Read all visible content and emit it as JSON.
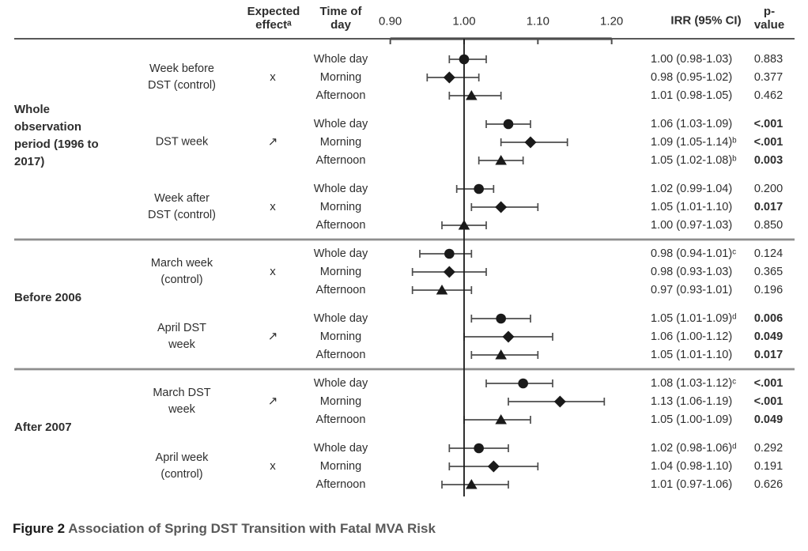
{
  "figure": {
    "columns": {
      "expected_effect": [
        "Expected",
        "effectᵃ"
      ],
      "time_of_day": [
        "Time of",
        "day"
      ],
      "irr": "IRR (95% CI)",
      "p_value": [
        "p-",
        "value"
      ]
    },
    "caption_prefix": "Figure 2",
    "caption_title": "Association of Spring DST Transition with Fatal MVA Risk"
  },
  "colors": {
    "marker": "#1a1a1a",
    "ci_line": "#4d4d4d",
    "reference_line": "#1a1a1a",
    "header_rule": "#595959",
    "separator": "#8e8e8e",
    "text": "#2e2e2e",
    "caption_title": "#595959"
  },
  "chart_data": {
    "type": "forest",
    "title": "Association of Spring DST Transition with Fatal MVA Risk",
    "xlabel": "IRR (95% CI)",
    "axis": {
      "ticks": [
        0.9,
        1.0,
        1.1,
        1.2
      ],
      "tick_labels": [
        "0.90",
        "1.00",
        "1.10",
        "1.20"
      ],
      "reference_line": 1.0
    },
    "marker_by_time": {
      "Whole day": "circle",
      "Morning": "diamond",
      "Afternoon": "triangle"
    },
    "groups": [
      {
        "label": [
          "Whole",
          "observation",
          "period (1996 to",
          "2017)"
        ],
        "subgroups": [
          {
            "label": [
              "Week before",
              "DST (control)"
            ],
            "expected_effect": "x",
            "rows": [
              {
                "time_of_day": "Whole day",
                "irr": 1.0,
                "ci_low": 0.98,
                "ci_high": 1.03,
                "irr_text": "1.00 (0.98-1.03)",
                "p_value": "0.883",
                "significant": false
              },
              {
                "time_of_day": "Morning",
                "irr": 0.98,
                "ci_low": 0.95,
                "ci_high": 1.02,
                "irr_text": "0.98 (0.95-1.02)",
                "p_value": "0.377",
                "significant": false
              },
              {
                "time_of_day": "Afternoon",
                "irr": 1.01,
                "ci_low": 0.98,
                "ci_high": 1.05,
                "irr_text": "1.01 (0.98-1.05)",
                "p_value": "0.462",
                "significant": false
              }
            ]
          },
          {
            "label": [
              "DST week"
            ],
            "expected_effect": "↗",
            "rows": [
              {
                "time_of_day": "Whole day",
                "irr": 1.06,
                "ci_low": 1.03,
                "ci_high": 1.09,
                "irr_text": "1.06 (1.03-1.09)",
                "p_value": "<.001",
                "significant": true
              },
              {
                "time_of_day": "Morning",
                "irr": 1.09,
                "ci_low": 1.05,
                "ci_high": 1.14,
                "irr_text": "1.09 (1.05-1.14)ᵇ",
                "p_value": "<.001",
                "significant": true
              },
              {
                "time_of_day": "Afternoon",
                "irr": 1.05,
                "ci_low": 1.02,
                "ci_high": 1.08,
                "irr_text": "1.05 (1.02-1.08)ᵇ",
                "p_value": "0.003",
                "significant": true
              }
            ]
          },
          {
            "label": [
              "Week after",
              "DST (control)"
            ],
            "expected_effect": "x",
            "rows": [
              {
                "time_of_day": "Whole day",
                "irr": 1.02,
                "ci_low": 0.99,
                "ci_high": 1.04,
                "irr_text": "1.02 (0.99-1.04)",
                "p_value": "0.200",
                "significant": false
              },
              {
                "time_of_day": "Morning",
                "irr": 1.05,
                "ci_low": 1.01,
                "ci_high": 1.1,
                "irr_text": "1.05 (1.01-1.10)",
                "p_value": "0.017",
                "significant": true
              },
              {
                "time_of_day": "Afternoon",
                "irr": 1.0,
                "ci_low": 0.97,
                "ci_high": 1.03,
                "irr_text": "1.00 (0.97-1.03)",
                "p_value": "0.850",
                "significant": false
              }
            ]
          }
        ]
      },
      {
        "label": [
          "Before 2006"
        ],
        "subgroups": [
          {
            "label": [
              "March week",
              "(control)"
            ],
            "expected_effect": "x",
            "rows": [
              {
                "time_of_day": "Whole day",
                "irr": 0.98,
                "ci_low": 0.94,
                "ci_high": 1.01,
                "irr_text": "0.98 (0.94-1.01)ᶜ",
                "p_value": "0.124",
                "significant": false
              },
              {
                "time_of_day": "Morning",
                "irr": 0.98,
                "ci_low": 0.93,
                "ci_high": 1.03,
                "irr_text": "0.98 (0.93-1.03)",
                "p_value": "0.365",
                "significant": false
              },
              {
                "time_of_day": "Afternoon",
                "irr": 0.97,
                "ci_low": 0.93,
                "ci_high": 1.01,
                "irr_text": "0.97 (0.93-1.01)",
                "p_value": "0.196",
                "significant": false
              }
            ]
          },
          {
            "label": [
              "April DST",
              "week"
            ],
            "expected_effect": "↗",
            "rows": [
              {
                "time_of_day": "Whole day",
                "irr": 1.05,
                "ci_low": 1.01,
                "ci_high": 1.09,
                "irr_text": "1.05 (1.01-1.09)ᵈ",
                "p_value": "0.006",
                "significant": true
              },
              {
                "time_of_day": "Morning",
                "irr": 1.06,
                "ci_low": 1.0,
                "ci_high": 1.12,
                "irr_text": "1.06 (1.00-1.12)",
                "p_value": "0.049",
                "significant": true
              },
              {
                "time_of_day": "Afternoon",
                "irr": 1.05,
                "ci_low": 1.01,
                "ci_high": 1.1,
                "irr_text": "1.05 (1.01-1.10)",
                "p_value": "0.017",
                "significant": true
              }
            ]
          }
        ]
      },
      {
        "label": [
          "After 2007"
        ],
        "subgroups": [
          {
            "label": [
              "March DST",
              "week"
            ],
            "expected_effect": "↗",
            "rows": [
              {
                "time_of_day": "Whole day",
                "irr": 1.08,
                "ci_low": 1.03,
                "ci_high": 1.12,
                "irr_text": "1.08 (1.03-1.12)ᶜ",
                "p_value": "<.001",
                "significant": true
              },
              {
                "time_of_day": "Morning",
                "irr": 1.13,
                "ci_low": 1.06,
                "ci_high": 1.19,
                "irr_text": "1.13 (1.06-1.19)",
                "p_value": "<.001",
                "significant": true
              },
              {
                "time_of_day": "Afternoon",
                "irr": 1.05,
                "ci_low": 1.0,
                "ci_high": 1.09,
                "irr_text": "1.05 (1.00-1.09)",
                "p_value": "0.049",
                "significant": true
              }
            ]
          },
          {
            "label": [
              "April week",
              "(control)"
            ],
            "expected_effect": "x",
            "rows": [
              {
                "time_of_day": "Whole day",
                "irr": 1.02,
                "ci_low": 0.98,
                "ci_high": 1.06,
                "irr_text": "1.02 (0.98-1.06)ᵈ",
                "p_value": "0.292",
                "significant": false
              },
              {
                "time_of_day": "Morning",
                "irr": 1.04,
                "ci_low": 0.98,
                "ci_high": 1.1,
                "irr_text": "1.04 (0.98-1.10)",
                "p_value": "0.191",
                "significant": false
              },
              {
                "time_of_day": "Afternoon",
                "irr": 1.01,
                "ci_low": 0.97,
                "ci_high": 1.06,
                "irr_text": "1.01 (0.97-1.06)",
                "p_value": "0.626",
                "significant": false
              }
            ]
          }
        ]
      }
    ]
  }
}
